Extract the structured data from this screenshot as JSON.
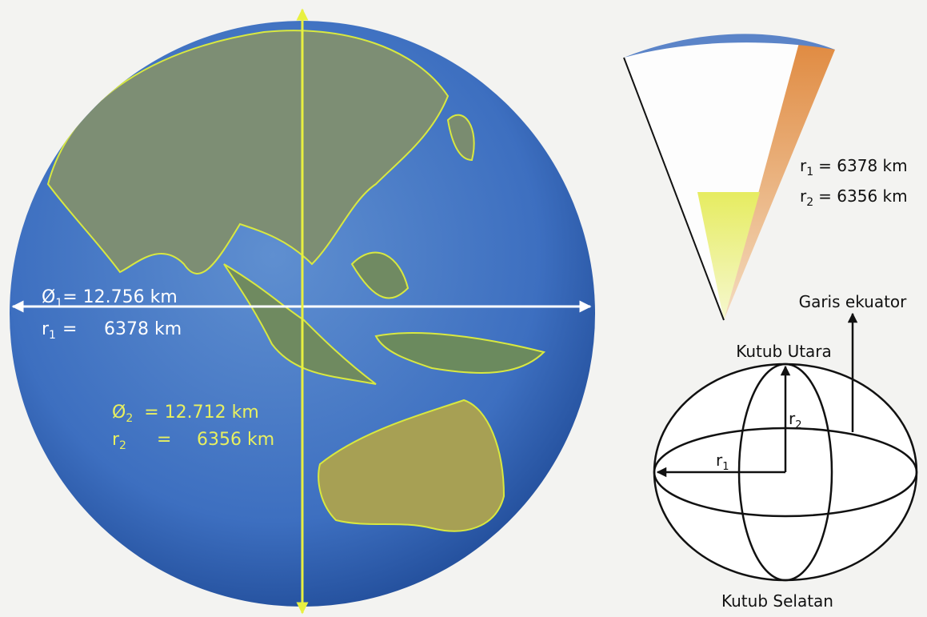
{
  "globe": {
    "equatorial_diameter": {
      "symbol": "Ø",
      "sub": "1",
      "text": "= 12.756 km"
    },
    "equatorial_radius": {
      "symbol": "r",
      "sub": "1",
      "text": "=",
      "value": "6378 km"
    },
    "polar_diameter": {
      "symbol": "Ø",
      "sub": "2",
      "text": "= 12.712 km"
    },
    "polar_radius": {
      "symbol": "r",
      "sub": "2",
      "text": "=",
      "value": "6356 km"
    }
  },
  "cone": {
    "labels": [
      {
        "symbol": "r",
        "sub": "1",
        "text": "= 6378 km"
      },
      {
        "symbol": "r",
        "sub": "2",
        "text": "= 6356 km"
      }
    ]
  },
  "ellipsoid": {
    "equator_label": "Garis ekuator",
    "north_pole": "Kutub Utara",
    "south_pole": "Kutub Selatan",
    "polar_radius": {
      "symbol": "r",
      "sub": "2"
    },
    "equatorial_radius": {
      "symbol": "r",
      "sub": "1"
    }
  }
}
